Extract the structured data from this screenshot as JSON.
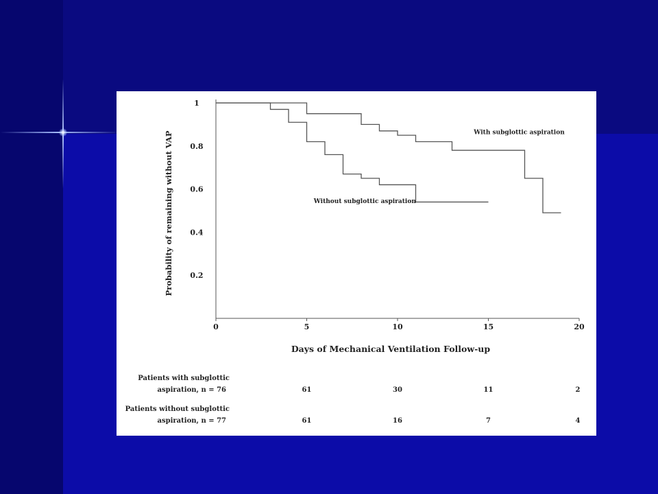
{
  "chart_data": {
    "type": "line",
    "ylabel": "Probability of remaining without VAP",
    "xlabel": "Days of Mechanical Ventilation Follow-up",
    "xlim": [
      0,
      20
    ],
    "ylim": [
      0,
      1
    ],
    "x_ticks": [
      "0",
      "5",
      "10",
      "15",
      "20"
    ],
    "y_ticks": [
      "0.2",
      "0.4",
      "0.6",
      "0.8",
      "1"
    ],
    "series": [
      {
        "name": "With subglottic aspiration",
        "step": true,
        "x": [
          0,
          5,
          8,
          9,
          10,
          11,
          13,
          17,
          18,
          19
        ],
        "y": [
          1,
          0.95,
          0.9,
          0.87,
          0.85,
          0.82,
          0.78,
          0.65,
          0.49,
          0.49
        ]
      },
      {
        "name": "Without subglottic aspiration",
        "step": true,
        "x": [
          0,
          3,
          4,
          5,
          6,
          7,
          8,
          9,
          11,
          15
        ],
        "y": [
          1,
          0.97,
          0.91,
          0.82,
          0.76,
          0.67,
          0.65,
          0.62,
          0.54,
          0.54
        ]
      }
    ],
    "risk_table": {
      "rows": [
        {
          "label_line1": "Patients with subglottic",
          "label_line2": "aspiration, n = 76",
          "values": [
            "61",
            "30",
            "11",
            "2"
          ]
        },
        {
          "label_line1": "Patients without subglottic",
          "label_line2": "aspiration, n = 77",
          "values": [
            "61",
            "16",
            "7",
            "4"
          ]
        }
      ]
    }
  }
}
